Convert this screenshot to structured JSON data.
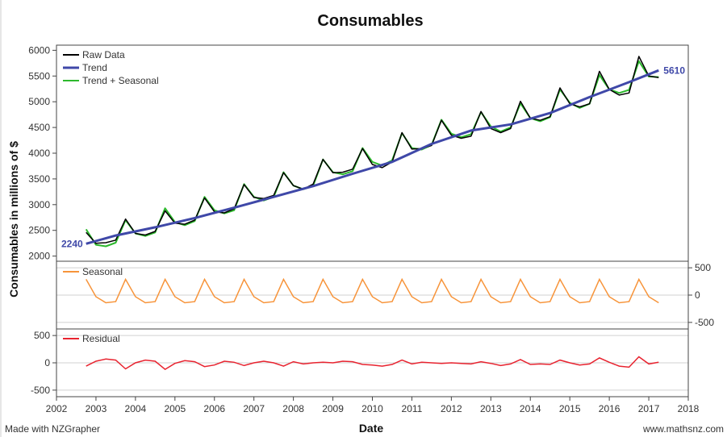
{
  "chart_data": {
    "type": "line",
    "title": "Consumables",
    "xlabel": "Date",
    "ylabel": "Consumables in millions of $",
    "footer_left": "Made with NZGrapher",
    "footer_right": "www.mathsnz.com",
    "x_ticks": [
      "2002",
      "2003",
      "2004",
      "2005",
      "2006",
      "2007",
      "2008",
      "2009",
      "2010",
      "2011",
      "2012",
      "2013",
      "2014",
      "2015",
      "2016",
      "2017",
      "2018"
    ],
    "xlim": [
      2002,
      2018
    ],
    "main": {
      "ylim": [
        1900,
        6100
      ],
      "y_ticks": [
        "2000",
        "2500",
        "3000",
        "3500",
        "4000",
        "4500",
        "5000",
        "5500",
        "6000"
      ],
      "trend_start_label": "2240",
      "trend_end_label": "5610",
      "series": [
        {
          "name": "Raw Data",
          "color": "#000000",
          "x": [
            2002.75,
            2003,
            2003.25,
            2003.5,
            2003.75,
            2004,
            2004.25,
            2004.5,
            2004.75,
            2005,
            2005.25,
            2005.5,
            2005.75,
            2006,
            2006.25,
            2006.5,
            2006.75,
            2007,
            2007.25,
            2007.5,
            2007.75,
            2008,
            2008.25,
            2008.5,
            2008.75,
            2009,
            2009.25,
            2009.5,
            2009.75,
            2010,
            2010.25,
            2010.5,
            2010.75,
            2011,
            2011.25,
            2011.5,
            2011.75,
            2012,
            2012.25,
            2012.5,
            2012.75,
            2013,
            2013.25,
            2013.5,
            2013.75,
            2014,
            2014.25,
            2014.5,
            2014.75,
            2015,
            2015.25,
            2015.5,
            2015.75,
            2016,
            2016.25,
            2016.5,
            2016.75,
            2017,
            2017.25
          ],
          "values": [
            2460,
            2250,
            2260,
            2310,
            2720,
            2440,
            2410,
            2480,
            2880,
            2640,
            2620,
            2700,
            3130,
            2860,
            2840,
            2920,
            3390,
            3140,
            3120,
            3180,
            3620,
            3370,
            3300,
            3400,
            3880,
            3620,
            3630,
            3690,
            4090,
            3780,
            3720,
            3830,
            4400,
            4080,
            4090,
            4150,
            4640,
            4350,
            4290,
            4330,
            4810,
            4480,
            4400,
            4480,
            5010,
            4680,
            4640,
            4710,
            5270,
            4960,
            4900,
            4960,
            5590,
            5240,
            5130,
            5170,
            5880,
            5500,
            5470
          ]
        },
        {
          "name": "Trend",
          "color": "#3f48a8",
          "x": [
            2002.75,
            2003.5,
            2004.5,
            2005.5,
            2006.5,
            2007.5,
            2008.5,
            2009.5,
            2010.5,
            2011.5,
            2012.5,
            2013.5,
            2014.5,
            2015.5,
            2016.5,
            2017.25
          ],
          "values": [
            2240,
            2400,
            2560,
            2740,
            2940,
            3150,
            3360,
            3600,
            3830,
            4180,
            4440,
            4560,
            4780,
            5090,
            5380,
            5610
          ]
        },
        {
          "name": "Trend + Seasonal",
          "color": "#2db82d",
          "x": [
            2002.75,
            2003,
            2003.25,
            2003.5,
            2003.75,
            2004,
            2004.25,
            2004.5,
            2004.75,
            2005,
            2005.25,
            2005.5,
            2005.75,
            2006,
            2006.25,
            2006.5,
            2006.75,
            2007,
            2007.25,
            2007.5,
            2007.75,
            2008,
            2008.25,
            2008.5,
            2008.75,
            2009,
            2009.25,
            2009.5,
            2009.75,
            2010,
            2010.25,
            2010.5,
            2010.75,
            2011,
            2011.25,
            2011.5,
            2011.75,
            2012,
            2012.25,
            2012.5,
            2012.75,
            2013,
            2013.25,
            2013.5,
            2013.75,
            2014,
            2014.25,
            2014.5,
            2014.75,
            2015,
            2015.25,
            2015.5,
            2015.75,
            2016,
            2016.25,
            2016.5,
            2016.75,
            2017,
            2017.25
          ],
          "values": [
            2520,
            2220,
            2190,
            2260,
            2700,
            2440,
            2390,
            2460,
            2930,
            2660,
            2600,
            2680,
            3150,
            2890,
            2830,
            2890,
            3400,
            3150,
            3080,
            3150,
            3630,
            3370,
            3300,
            3370,
            3880,
            3630,
            3590,
            3650,
            4100,
            3830,
            3760,
            3860,
            4390,
            4100,
            4070,
            4160,
            4650,
            4380,
            4310,
            4370,
            4800,
            4520,
            4420,
            4500,
            4970,
            4680,
            4620,
            4700,
            5240,
            4980,
            4880,
            4960,
            5520,
            5240,
            5170,
            5230,
            5790,
            5490,
            5480
          ]
        }
      ]
    },
    "seasonal": {
      "label": "Seasonal",
      "color": "#f7943a",
      "ylim": [
        -620,
        620
      ],
      "y_ticks": [
        "500",
        "0",
        "-500"
      ],
      "pattern": [
        290,
        -30,
        -140,
        -120
      ],
      "x_start": 2002.75,
      "x_end": 2017.25
    },
    "residual": {
      "label": "Residual",
      "color": "#e8232f",
      "ylim": [
        -620,
        620
      ],
      "y_ticks": [
        "500",
        "0",
        "-500"
      ],
      "x": [
        2002.75,
        2003,
        2003.25,
        2003.5,
        2003.75,
        2004,
        2004.25,
        2004.5,
        2004.75,
        2005,
        2005.25,
        2005.5,
        2005.75,
        2006,
        2006.25,
        2006.5,
        2006.75,
        2007,
        2007.25,
        2007.5,
        2007.75,
        2008,
        2008.25,
        2008.5,
        2008.75,
        2009,
        2009.25,
        2009.5,
        2009.75,
        2010,
        2010.25,
        2010.5,
        2010.75,
        2011,
        2011.25,
        2011.5,
        2011.75,
        2012,
        2012.25,
        2012.5,
        2012.75,
        2013,
        2013.25,
        2013.5,
        2013.75,
        2014,
        2014.25,
        2014.5,
        2014.75,
        2015,
        2015.25,
        2015.5,
        2015.75,
        2016,
        2016.25,
        2016.5,
        2016.75,
        2017,
        2017.25
      ],
      "values": [
        -60,
        30,
        70,
        50,
        -110,
        0,
        50,
        30,
        -120,
        -10,
        40,
        20,
        -70,
        -40,
        30,
        10,
        -50,
        0,
        30,
        0,
        -60,
        20,
        -20,
        0,
        10,
        0,
        30,
        20,
        -30,
        -40,
        -60,
        -30,
        50,
        -20,
        10,
        0,
        -10,
        0,
        -10,
        -20,
        20,
        -10,
        -50,
        -20,
        60,
        -30,
        -20,
        -30,
        50,
        0,
        -40,
        -20,
        90,
        10,
        -60,
        -80,
        110,
        -20,
        10
      ]
    }
  }
}
